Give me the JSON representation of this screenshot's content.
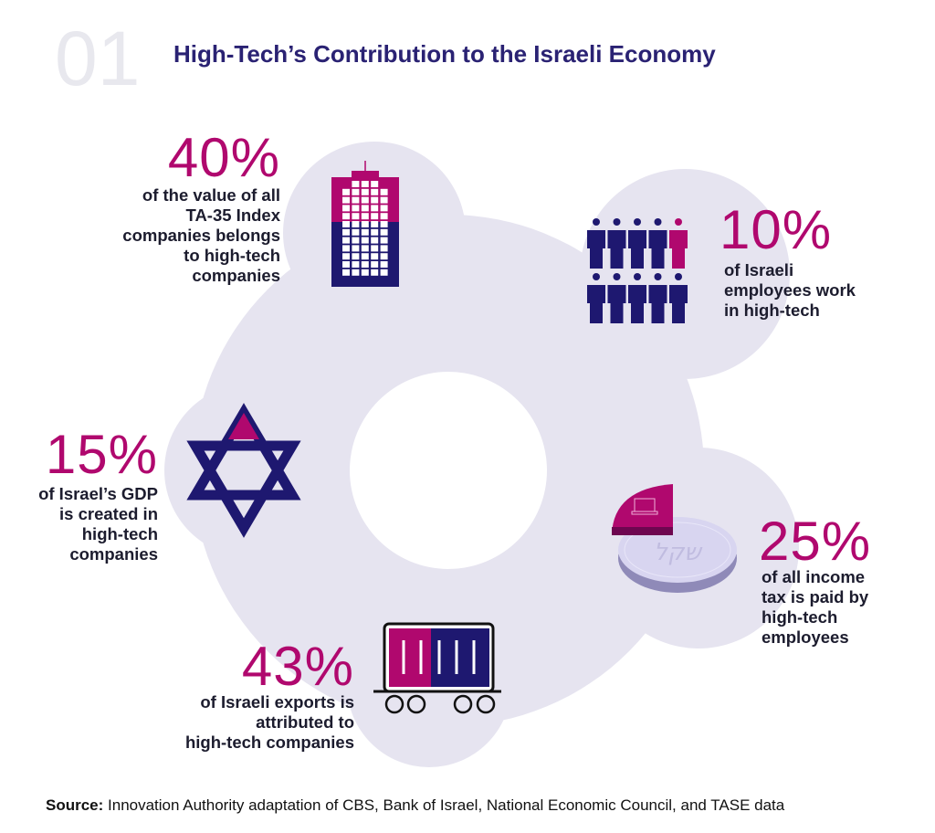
{
  "header": {
    "number": "01",
    "title": "High-Tech’s Contribution to the Israeli Economy"
  },
  "colors": {
    "magenta": "#b0086e",
    "navy": "#1e1870",
    "lavender": "#e6e4f0"
  },
  "stats": [
    {
      "value": "40%",
      "lines": [
        "of the value of all",
        "TA-35 Index",
        "companies belongs",
        "to high-tech",
        "companies"
      ],
      "icon": "building-icon"
    },
    {
      "value": "10%",
      "lines": [
        "of Israeli",
        "employees work",
        "in high-tech"
      ],
      "icon": "people-icon"
    },
    {
      "value": "15%",
      "lines": [
        "of Israel’s GDP",
        "is created in",
        "high-tech",
        "companies"
      ],
      "icon": "star-of-david-icon"
    },
    {
      "value": "25%",
      "lines": [
        "of all income",
        "tax is paid by",
        "high-tech",
        "employees"
      ],
      "icon": "shekel-coin-icon"
    },
    {
      "value": "43%",
      "lines": [
        "of Israeli exports is",
        "attributed to",
        "high-tech companies"
      ],
      "icon": "cargo-container-icon"
    }
  ],
  "coin_text": "שקל",
  "source": {
    "label": "Source:",
    "text": " Innovation Authority adaptation of CBS, Bank of Israel, National Economic Council, and TASE data"
  }
}
